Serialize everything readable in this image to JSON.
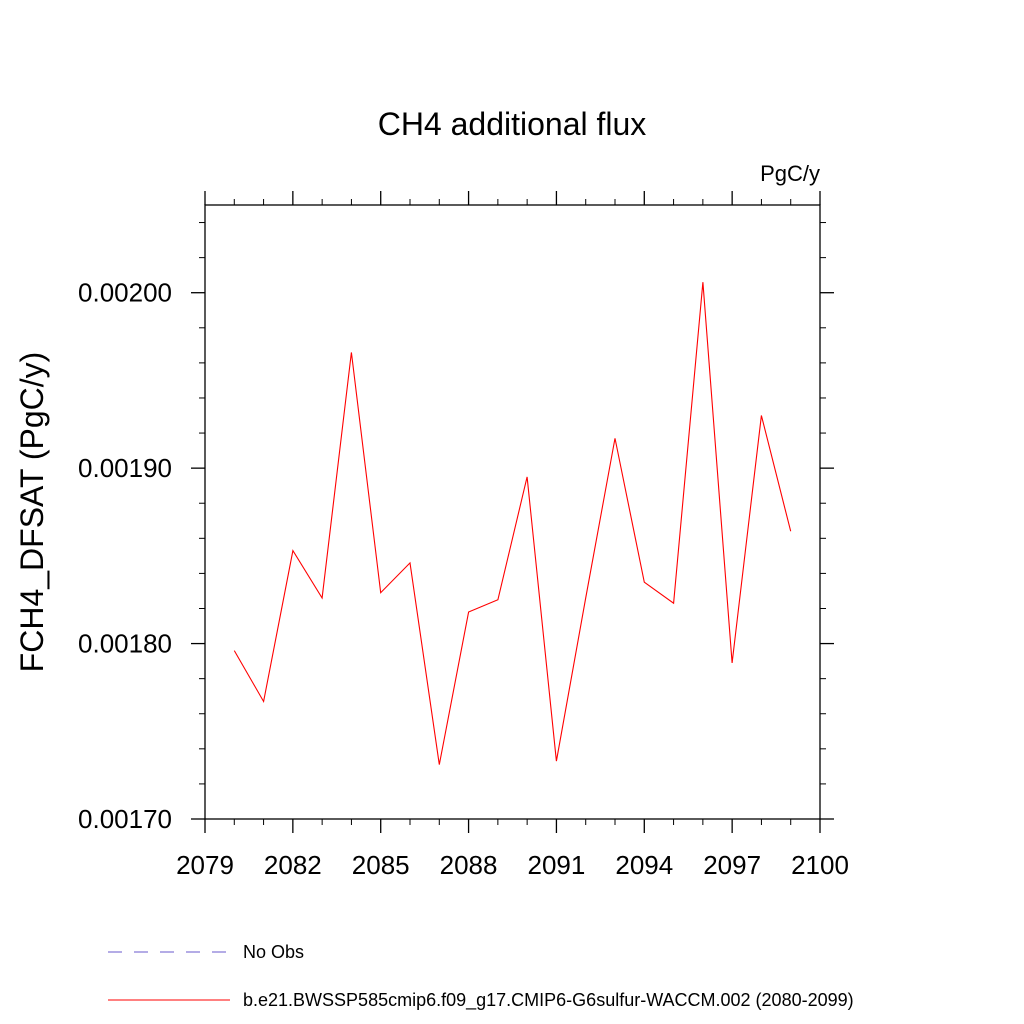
{
  "chart_data": {
    "type": "line",
    "title": "CH4 additional flux",
    "units": "PgC/y",
    "ylabel": "FCH4_DFSAT  (PgC/y)",
    "xlabel": "",
    "xlim": [
      2079,
      2100
    ],
    "ylim": [
      0.0017,
      0.00205
    ],
    "xticks": [
      2079,
      2082,
      2085,
      2088,
      2091,
      2094,
      2097,
      2100
    ],
    "yticks": [
      0.0017,
      0.0018,
      0.0019,
      0.002
    ],
    "ytick_labels": [
      "0.00170",
      "0.00180",
      "0.00190",
      "0.00200"
    ],
    "grid": false,
    "legend_position": "bottom",
    "series": [
      {
        "name": "b.e21.BWSSP585cmip6.f09_g17.CMIP6-G6sulfur-WACCM.002 (2080-2099)",
        "color": "#ff0000",
        "style": "solid",
        "x": [
          2080,
          2081,
          2082,
          2083,
          2084,
          2085,
          2086,
          2087,
          2088,
          2089,
          2090,
          2091,
          2092,
          2093,
          2094,
          2095,
          2096,
          2097,
          2098,
          2099
        ],
        "y": [
          0.001796,
          0.001767,
          0.001853,
          0.001826,
          0.001966,
          0.001829,
          0.001846,
          0.001731,
          0.001818,
          0.001825,
          0.001895,
          0.001733,
          0.001826,
          0.001917,
          0.001835,
          0.001823,
          0.002006,
          0.001789,
          0.00193,
          0.001864
        ]
      }
    ],
    "legend": [
      {
        "label": "No Obs",
        "color": "#6a5acd",
        "style": "dashed"
      },
      {
        "label": "b.e21.BWSSP585cmip6.f09_g17.CMIP6-G6sulfur-WACCM.002 (2080-2099)",
        "color": "#ff0000",
        "style": "solid"
      }
    ]
  }
}
